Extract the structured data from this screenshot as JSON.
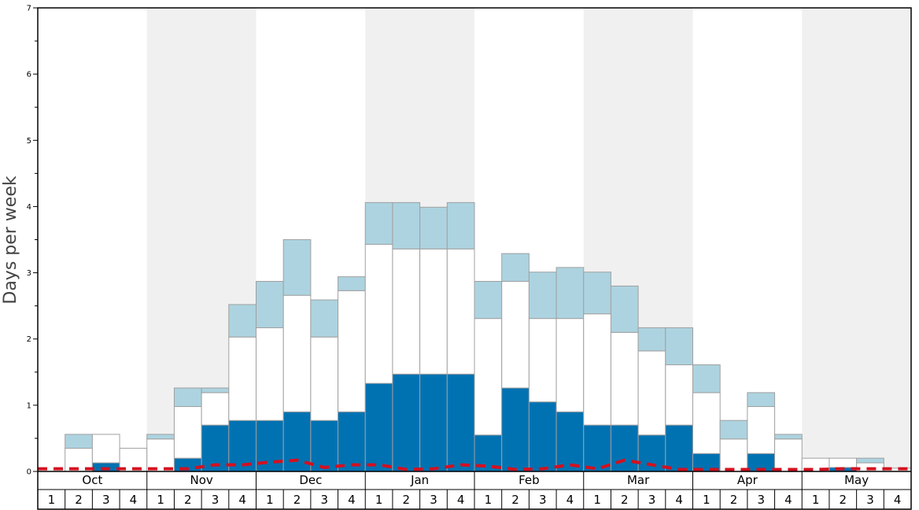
{
  "chart_data": {
    "type": "bar",
    "stacked": true,
    "title": "",
    "xlabel": "",
    "ylabel": "Days per week",
    "ylim": [
      0,
      7
    ],
    "y_ticks": [
      "0",
      "1",
      "2",
      "3",
      "4",
      "5",
      "6",
      "7"
    ],
    "months": [
      "Oct",
      "Nov",
      "Dec",
      "Jan",
      "Feb",
      "Mar",
      "Apr",
      "May"
    ],
    "week_labels": [
      "1",
      "2",
      "3",
      "4"
    ],
    "series": [
      {
        "name": "dark",
        "color": "#0072b2",
        "values": [
          0,
          0,
          0.13,
          0,
          0,
          0.2,
          0.7,
          0.77,
          0.77,
          0.9,
          0.77,
          0.9,
          1.33,
          1.47,
          1.47,
          1.47,
          0.55,
          1.26,
          1.05,
          0.9,
          0.7,
          0.7,
          0.55,
          0.7,
          0.27,
          0,
          0.27,
          0,
          0,
          0.06,
          0,
          0
        ]
      },
      {
        "name": "white",
        "color": "#ffffff",
        "values": [
          0,
          0.35,
          0.43,
          0.35,
          0.49,
          0.78,
          0.49,
          1.26,
          1.4,
          1.76,
          1.26,
          1.83,
          2.1,
          1.89,
          1.89,
          1.89,
          1.76,
          1.61,
          1.26,
          1.41,
          1.68,
          1.4,
          1.27,
          0.91,
          0.92,
          0.49,
          0.71,
          0.49,
          0.2,
          0.14,
          0.13,
          0.05
        ]
      },
      {
        "name": "light",
        "color": "#add3e0",
        "values": [
          0,
          0.21,
          0,
          0,
          0.07,
          0.28,
          0.07,
          0.49,
          0.7,
          0.84,
          0.56,
          0.21,
          0.63,
          0.7,
          0.63,
          0.7,
          0.56,
          0.42,
          0.7,
          0.77,
          0.63,
          0.7,
          0.35,
          0.56,
          0.42,
          0.28,
          0.21,
          0.07,
          0,
          0,
          0.07,
          0
        ]
      }
    ],
    "dashed_line": {
      "name": "dashed",
      "color": "#d4101f",
      "values": [
        0.04,
        0.04,
        0.04,
        0.04,
        0.04,
        0.04,
        0.1,
        0.1,
        0.14,
        0.17,
        0.06,
        0.1,
        0.1,
        0.03,
        0.04,
        0.1,
        0.08,
        0.03,
        0.04,
        0.1,
        0.04,
        0.17,
        0.1,
        0.03,
        0.03,
        0.03,
        0.03,
        0.03,
        0.03,
        0.04,
        0.04,
        0.04
      ]
    },
    "shaded_months": [
      1,
      3,
      5,
      7
    ]
  }
}
